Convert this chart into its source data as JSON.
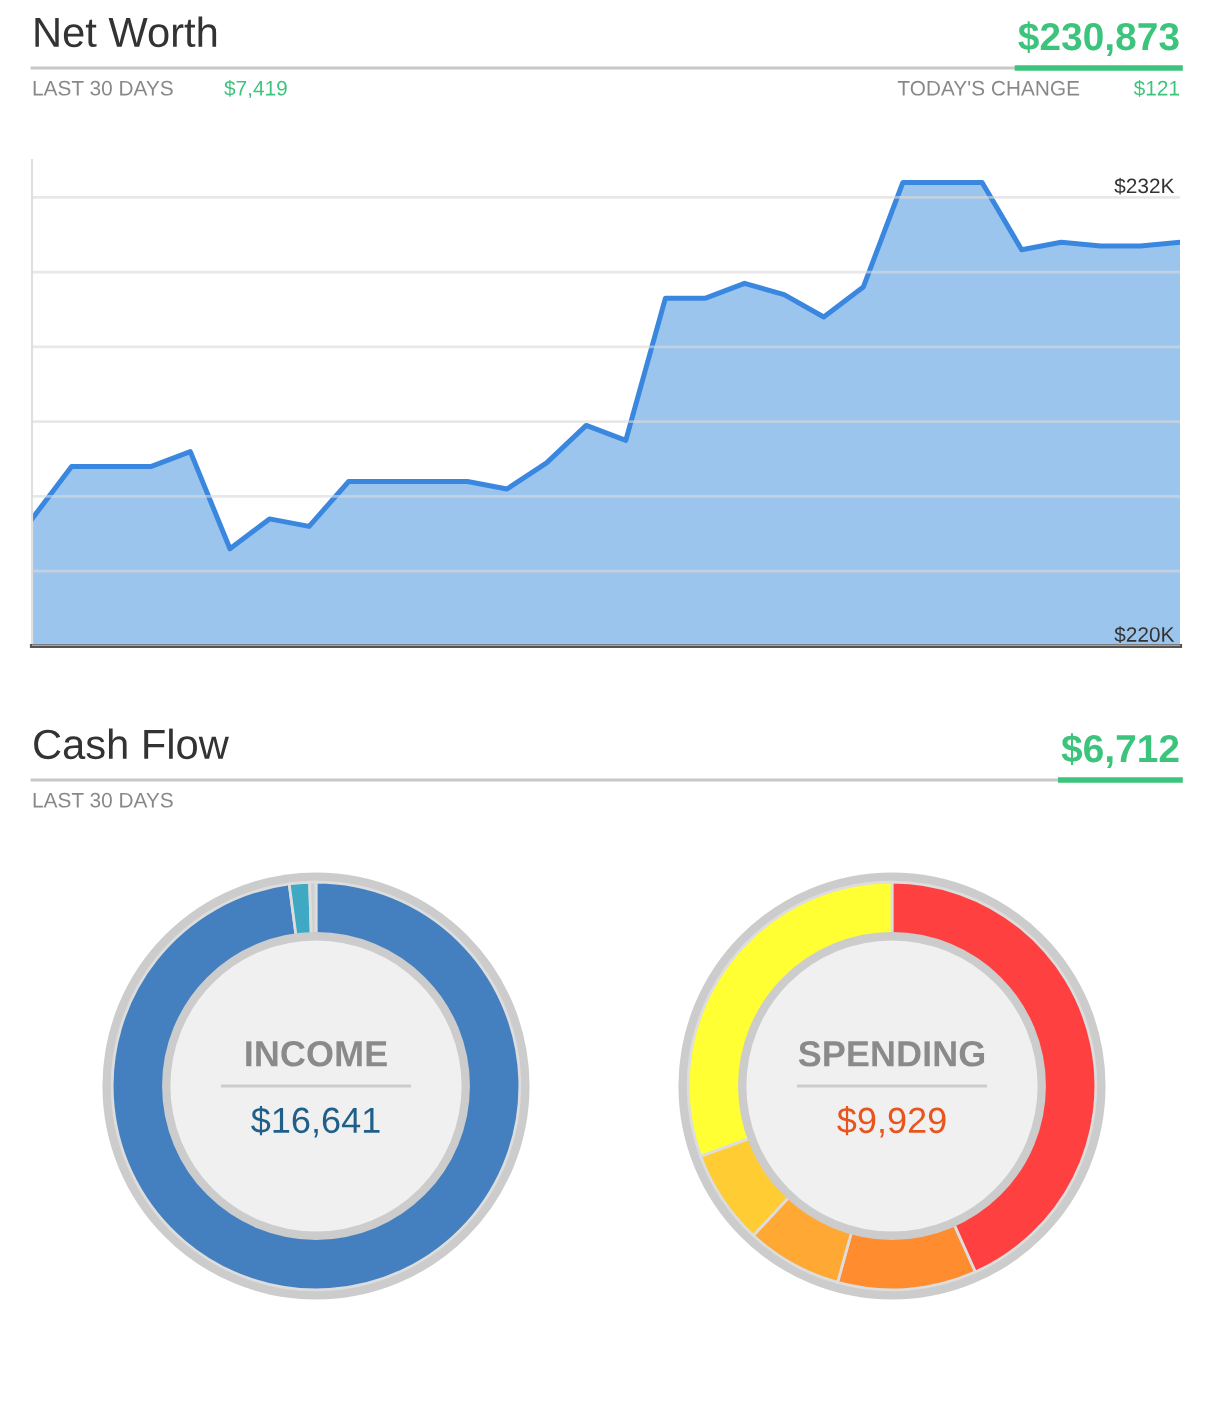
{
  "chart_data": [
    {
      "type": "area",
      "title": "Net Worth",
      "annotations": [
        "$230,873",
        "LAST 30 DAYS",
        "$7,419",
        "TODAY'S CHANGE",
        "$121"
      ],
      "categories": [
        null,
        null,
        null,
        null,
        null,
        null,
        null,
        null,
        null,
        null,
        null,
        null,
        null,
        null,
        null,
        null,
        null,
        null,
        null,
        null,
        null,
        null,
        null,
        null,
        null,
        null,
        null,
        null,
        null,
        null
      ],
      "series": [
        {
          "color": "#3a87e0",
          "values": [
            223.4,
            224.8,
            224.8,
            224.8,
            225.2,
            222.6,
            223.4,
            223.2,
            224.4,
            224.4,
            224.4,
            224.4,
            224.2,
            224.9,
            225.9,
            225.5,
            229.3,
            229.3,
            229.7,
            229.4,
            228.8,
            229.6,
            232.4,
            232.4,
            232.4,
            230.6,
            230.8,
            230.7,
            230.7,
            230.8
          ]
        }
      ],
      "ylim": [
        220,
        233
      ],
      "yticks": [
        {
          "value": 220,
          "label": "$220K"
        },
        {
          "value": 222,
          "label": null
        },
        {
          "value": 224,
          "label": null
        },
        {
          "value": 226,
          "label": null
        },
        {
          "value": 228,
          "label": null
        },
        {
          "value": 230,
          "label": null
        },
        {
          "value": 232,
          "label": "$232K"
        }
      ],
      "grid": "y"
    },
    {
      "type": "other",
      "title": "Cash Flow",
      "annotations": [
        "$6,712",
        "LAST 30 DAYS"
      ]
    },
    {
      "type": "donut",
      "title": "INCOME",
      "annotations": [
        "$16,641"
      ],
      "categories": [
        null,
        null,
        null
      ],
      "values": [
        97.9,
        1.6,
        0.5
      ],
      "colors": [
        "#4480bf",
        "#3fa9c4",
        "#d0d0d0"
      ]
    },
    {
      "type": "donut",
      "title": "SPENDING",
      "annotations": [
        "$9,929"
      ],
      "categories": [
        null,
        null,
        null,
        null,
        null
      ],
      "values": [
        43.3,
        11.0,
        7.6,
        7.5,
        30.6
      ],
      "colors": [
        "#ff4040",
        "#ff8c2e",
        "#ffa833",
        "#ffcc33",
        "#ffff33"
      ]
    }
  ]
}
